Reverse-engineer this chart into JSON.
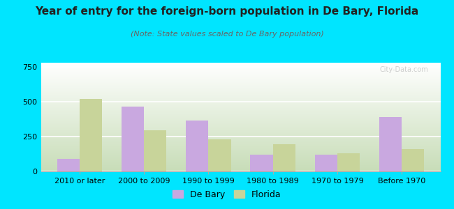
{
  "title": "Year of entry for the foreign-born population in De Bary, Florida",
  "subtitle": "(Note: State values scaled to De Bary population)",
  "categories": [
    "2010 or later",
    "2000 to 2009",
    "1990 to 1999",
    "1980 to 1989",
    "1970 to 1979",
    "Before 1970"
  ],
  "debary_values": [
    90,
    465,
    365,
    120,
    120,
    390
  ],
  "florida_values": [
    520,
    295,
    230,
    195,
    130,
    160
  ],
  "debary_color": "#c9a8e0",
  "florida_color": "#c8d49a",
  "background_outer": "#00e5ff",
  "plot_bg_top": "#f5fff5",
  "plot_bg_bottom": "#d8edcc",
  "ylim": [
    0,
    780
  ],
  "yticks": [
    0,
    250,
    500,
    750
  ],
  "bar_width": 0.35,
  "title_fontsize": 11,
  "subtitle_fontsize": 8,
  "tick_fontsize": 8,
  "legend_fontsize": 9,
  "watermark": "City-Data.com"
}
